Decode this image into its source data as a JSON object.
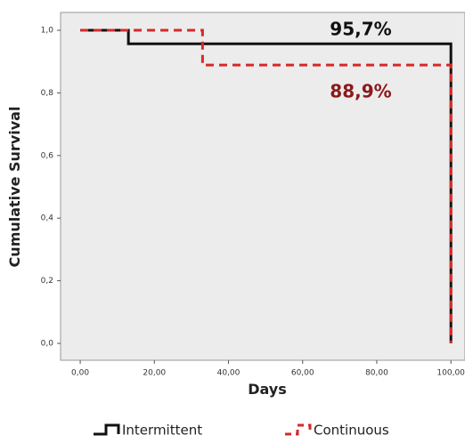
{
  "chart_data": {
    "type": "step",
    "xlabel": "Days",
    "ylabel": "Cumulative Survival",
    "xlim": [
      -5.3,
      103.8
    ],
    "ylim": [
      -0.054,
      1.057
    ],
    "xticks": [
      {
        "value": 0,
        "label": "0,00"
      },
      {
        "value": 20,
        "label": "20,00"
      },
      {
        "value": 40,
        "label": "40,00"
      },
      {
        "value": 60,
        "label": "60,00"
      },
      {
        "value": 80,
        "label": "80,00"
      },
      {
        "value": 100,
        "label": "100,00"
      }
    ],
    "yticks": [
      {
        "value": 0,
        "label": "0,0"
      },
      {
        "value": 0.2,
        "label": "0,2"
      },
      {
        "value": 0.4,
        "label": "0,4"
      },
      {
        "value": 0.6,
        "label": "0,6"
      },
      {
        "value": 0.8,
        "label": "0,8"
      },
      {
        "value": 1,
        "label": "1,0"
      }
    ],
    "series": [
      {
        "name": "Intermittent",
        "color": "#111111",
        "dash": false,
        "x": [
          0,
          13,
          13,
          100,
          100
        ],
        "values": [
          1,
          1,
          0.957,
          0.957,
          0
        ]
      },
      {
        "name": "Continuous",
        "color": "#d42a2a",
        "dash": true,
        "x": [
          0,
          33,
          33,
          100,
          100
        ],
        "values": [
          1,
          1,
          0.889,
          0.889,
          0
        ]
      }
    ],
    "annotations": [
      {
        "text": "95,7%",
        "color": "#111111"
      },
      {
        "text": "88,9%",
        "color": "#8b1a1a"
      }
    ]
  }
}
